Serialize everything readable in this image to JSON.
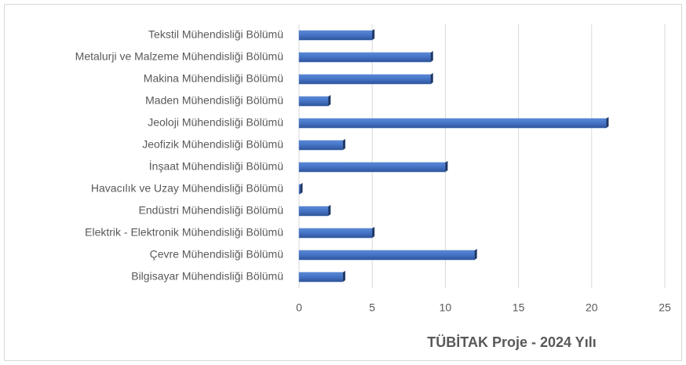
{
  "chart_data": {
    "type": "barh",
    "x_label": "TÜBİTAK Proje - 2024 Yılı",
    "categories": [
      "Tekstil Mühendisliği Bölümü",
      "Metalurji ve Malzeme Mühendisliği Bölümü",
      "Makina Mühendisliği Bölümü",
      "Maden Mühendisliği Bölümü",
      "Jeoloji Mühendisliği Bölümü",
      "Jeofizik Mühendisliği Bölümü",
      "İnşaat Mühendisliği Bölümü",
      "Havacılık ve Uzay Mühendisliği Bölümü",
      "Endüstri Mühendisliği Bölümü",
      "Elektrik - Elektronik Mühendisliği Bölümü",
      "Çevre Mühendisliği Bölümü",
      "Bilgisayar Mühendisliği Bölümü"
    ],
    "values": [
      5,
      9,
      9,
      2,
      21,
      3,
      10,
      0,
      2,
      5,
      12,
      3
    ],
    "color": "#4472c4",
    "xlim": [
      0,
      25
    ],
    "xticks": [
      0,
      5,
      10,
      15,
      20,
      25
    ],
    "grid": true
  }
}
